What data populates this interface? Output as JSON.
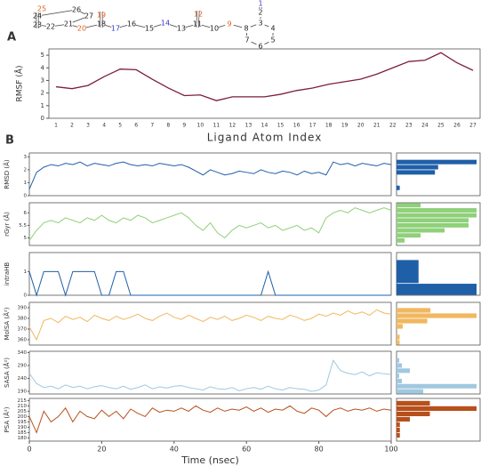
{
  "panel_labels": [
    "A",
    "B"
  ],
  "structure": {
    "atoms": [
      "1",
      "2",
      "3",
      "4",
      "5",
      "6",
      "7",
      "8",
      "9",
      "10",
      "11",
      "12",
      "13",
      "14",
      "15",
      "16",
      "17",
      "18",
      "19",
      "20",
      "21",
      "22",
      "23",
      "24",
      "25",
      "26",
      "27"
    ],
    "atom_colors": [
      "#3a3ad0",
      "#222",
      "#222",
      "#222",
      "#222",
      "#222",
      "#222",
      "#222",
      "#e06020",
      "#222",
      "#222",
      "#e06020",
      "#222",
      "#3a3ad0",
      "#222",
      "#222",
      "#3a3ad0",
      "#222",
      "#e06020",
      "#e06020",
      "#222",
      "#222",
      "#222",
      "#222",
      "#e06020",
      "#222",
      "#222"
    ]
  },
  "chart_data": [
    {
      "type": "line",
      "ylabel": "RMSF (Å)",
      "xlabel": "Ligand Atom Index",
      "color": "#7b1f3a",
      "categories": [
        "1",
        "2",
        "3",
        "4",
        "5",
        "6",
        "7",
        "8",
        "9",
        "10",
        "11",
        "12",
        "13",
        "14",
        "15",
        "16",
        "17",
        "18",
        "19",
        "20",
        "21",
        "22",
        "23",
        "24",
        "25",
        "26",
        "27"
      ],
      "values": [
        2.5,
        2.35,
        2.6,
        3.3,
        3.9,
        3.85,
        3.1,
        2.4,
        1.8,
        1.85,
        1.4,
        1.7,
        1.7,
        1.7,
        1.9,
        2.2,
        2.4,
        2.7,
        2.9,
        3.1,
        3.5,
        4.0,
        4.5,
        4.6,
        5.2,
        4.4,
        3.8
      ],
      "ylim": [
        0,
        5.5
      ],
      "yticks": [
        0,
        1,
        2,
        3,
        4,
        5
      ]
    },
    {
      "type": "timeseries",
      "xlabel": "Time (nsec)",
      "xlim": [
        0,
        100
      ],
      "xticks": [
        0,
        20,
        40,
        60,
        80,
        100
      ],
      "x": [
        0,
        2,
        4,
        6,
        8,
        10,
        12,
        14,
        16,
        18,
        20,
        22,
        24,
        26,
        28,
        30,
        32,
        34,
        36,
        38,
        40,
        42,
        44,
        46,
        48,
        50,
        52,
        54,
        56,
        58,
        60,
        62,
        64,
        66,
        68,
        70,
        72,
        74,
        76,
        78,
        80,
        82,
        84,
        86,
        88,
        90,
        92,
        94,
        96,
        98,
        100
      ],
      "panels": [
        {
          "ylabel": "RMSD (Å)",
          "color": "#1f5fa8",
          "ylim": [
            0,
            3.3
          ],
          "yticks": [
            0,
            1,
            2,
            3
          ],
          "values": [
            0.5,
            1.8,
            2.2,
            2.4,
            2.3,
            2.5,
            2.4,
            2.6,
            2.3,
            2.5,
            2.4,
            2.3,
            2.5,
            2.6,
            2.4,
            2.3,
            2.4,
            2.3,
            2.5,
            2.4,
            2.3,
            2.4,
            2.2,
            1.9,
            1.6,
            2.0,
            1.8,
            1.6,
            1.7,
            1.9,
            1.8,
            1.7,
            2.0,
            1.8,
            1.7,
            1.9,
            1.8,
            1.6,
            1.9,
            1.7,
            1.8,
            1.6,
            2.6,
            2.4,
            2.5,
            2.3,
            2.5,
            2.4,
            2.3,
            2.5,
            2.4
          ],
          "hist": {
            "bins": [
              0.4,
              0.8,
              1.2,
              1.6,
              2.0,
              2.4,
              2.8
            ],
            "counts": [
              1,
              0,
              0,
              12,
              13,
              25
            ]
          }
        },
        {
          "ylabel": "rGyr (Å)",
          "color": "#8fd07a",
          "ylim": [
            4.7,
            6.4
          ],
          "yticks": [
            5.0,
            5.5,
            6.0
          ],
          "values": [
            4.9,
            5.3,
            5.6,
            5.7,
            5.6,
            5.8,
            5.7,
            5.6,
            5.8,
            5.7,
            5.9,
            5.7,
            5.6,
            5.8,
            5.7,
            5.9,
            5.8,
            5.6,
            5.7,
            5.8,
            5.9,
            6.0,
            5.8,
            5.5,
            5.3,
            5.6,
            5.2,
            5.0,
            5.3,
            5.5,
            5.4,
            5.5,
            5.6,
            5.4,
            5.5,
            5.3,
            5.4,
            5.5,
            5.3,
            5.4,
            5.2,
            5.8,
            6.0,
            6.1,
            6.0,
            6.2,
            6.1,
            6.0,
            6.1,
            6.2,
            6.1
          ],
          "hist": {
            "bins": [
              4.8,
              5.0,
              5.2,
              5.4,
              5.6,
              5.8,
              6.0,
              6.2,
              6.4
            ],
            "counts": [
              1,
              3,
              6,
              9,
              9,
              10,
              10,
              3
            ]
          }
        },
        {
          "ylabel": "intraHB",
          "color": "#1f5fa8",
          "ylim": [
            0,
            1.8
          ],
          "yticks": [
            0,
            1
          ],
          "values": [
            1,
            0,
            1,
            1,
            1,
            0,
            1,
            1,
            1,
            1,
            0,
            0,
            1,
            1,
            0,
            0,
            0,
            0,
            0,
            0,
            0,
            0,
            0,
            0,
            0,
            0,
            0,
            0,
            0,
            0,
            0,
            0,
            0,
            1,
            0,
            0,
            0,
            0,
            0,
            0,
            0,
            0,
            0,
            0,
            0,
            0,
            0,
            0,
            0,
            0,
            0
          ],
          "hist": {
            "bins": [
              -0.5,
              0.5,
              1.5
            ],
            "counts": [
              40,
              11
            ]
          }
        },
        {
          "ylabel": "MolSA (Å²)",
          "color": "#f0b860",
          "ylim": [
            355,
            395
          ],
          "yticks": [
            360,
            370,
            380,
            390
          ],
          "values": [
            372,
            360,
            378,
            380,
            376,
            382,
            379,
            381,
            377,
            383,
            380,
            378,
            382,
            379,
            381,
            384,
            380,
            378,
            382,
            385,
            381,
            379,
            383,
            380,
            377,
            381,
            379,
            382,
            378,
            380,
            383,
            381,
            378,
            382,
            380,
            379,
            383,
            381,
            378,
            380,
            384,
            382,
            385,
            383,
            387,
            384,
            386,
            383,
            388,
            385,
            384
          ],
          "hist": {
            "bins": [
              355,
              360,
              365,
              370,
              375,
              380,
              385,
              390
            ],
            "counts": [
              1,
              1,
              0,
              2,
              10,
              26,
              11
            ]
          }
        },
        {
          "ylabel": "SASA (Å²)",
          "color": "#a0c8e0",
          "ylim": [
            180,
            345
          ],
          "yticks": [
            190,
            240,
            290,
            340
          ],
          "values": [
            260,
            220,
            205,
            210,
            200,
            215,
            205,
            210,
            200,
            208,
            212,
            205,
            200,
            210,
            198,
            205,
            215,
            200,
            208,
            203,
            210,
            212,
            205,
            200,
            195,
            208,
            200,
            198,
            205,
            192,
            200,
            205,
            198,
            210,
            200,
            195,
            205,
            200,
            198,
            190,
            195,
            215,
            310,
            270,
            260,
            255,
            265,
            250,
            262,
            258,
            255
          ],
          "hist": {
            "bins": [
              180,
              200,
              220,
              240,
              260,
              280,
              300,
              320
            ],
            "counts": [
              10,
              30,
              2,
              1,
              5,
              2,
              1
            ]
          }
        },
        {
          "ylabel": "PSA (Å²)",
          "color": "#b8501c",
          "ylim": [
            177,
            217
          ],
          "yticks": [
            180,
            185,
            190,
            195,
            200,
            205,
            210,
            215
          ],
          "values": [
            200,
            185,
            205,
            195,
            200,
            208,
            195,
            205,
            200,
            198,
            206,
            200,
            205,
            198,
            207,
            203,
            200,
            208,
            204,
            206,
            205,
            208,
            205,
            210,
            206,
            204,
            208,
            205,
            207,
            206,
            209,
            205,
            208,
            204,
            207,
            206,
            210,
            205,
            203,
            208,
            206,
            200,
            206,
            208,
            205,
            207,
            206,
            208,
            205,
            207,
            206
          ],
          "hist": {
            "bins": [
              180,
              185,
              190,
              195,
              200,
              205,
              210,
              215
            ],
            "counts": [
              1,
              1,
              1,
              4,
              10,
              24,
              10
            ]
          }
        }
      ]
    }
  ]
}
